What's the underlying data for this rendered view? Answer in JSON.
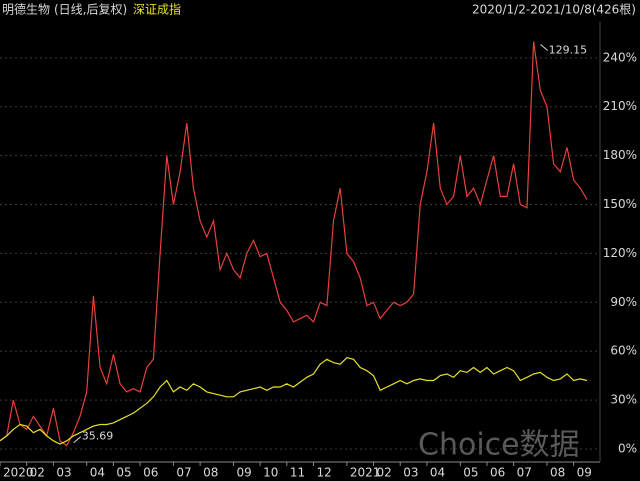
{
  "chart_data": {
    "type": "line",
    "title": "明德生物",
    "subtitle": "(日线,后复权)",
    "date_range": "2020/1/2-2021/10/8(426根)",
    "watermark": "Choice数据",
    "max_label": "129.15",
    "min_label": "35.69",
    "grid": true,
    "categories": [
      "2020",
      null,
      null,
      null,
      "02",
      null,
      null,
      null,
      "03",
      null,
      null,
      null,
      null,
      "04",
      null,
      null,
      null,
      "05",
      null,
      null,
      null,
      "06",
      null,
      null,
      null,
      null,
      "07",
      null,
      null,
      null,
      "08",
      null,
      null,
      null,
      null,
      "09",
      null,
      null,
      null,
      "10",
      null,
      null,
      null,
      "11",
      null,
      null,
      null,
      "12",
      null,
      null,
      null,
      null,
      "2021",
      null,
      null,
      null,
      "02",
      null,
      null,
      null,
      "03",
      null,
      null,
      null,
      "04",
      null,
      null,
      null,
      null,
      "05",
      null,
      null,
      null,
      "06",
      null,
      null,
      null,
      "07",
      null,
      null,
      null,
      null,
      "08",
      null,
      null,
      null,
      "09",
      null,
      null
    ],
    "series": [
      {
        "name": "明德生物",
        "color": "#e8403c",
        "values": [
          5,
          8,
          30,
          15,
          12,
          20,
          14,
          8,
          25,
          5,
          2,
          10,
          20,
          35,
          94,
          50,
          40,
          58,
          40,
          35,
          37,
          35,
          50,
          55,
          120,
          180,
          150,
          170,
          200,
          160,
          140,
          130,
          140,
          110,
          120,
          110,
          105,
          120,
          128,
          118,
          120,
          105,
          90,
          85,
          78,
          80,
          82,
          78,
          90,
          88,
          140,
          160,
          120,
          115,
          105,
          88,
          90,
          80,
          85,
          90,
          88,
          90,
          95,
          150,
          170,
          200,
          160,
          150,
          155,
          180,
          155,
          160,
          150,
          165,
          180,
          155,
          155,
          175,
          150,
          148,
          250,
          220,
          210,
          175,
          170,
          185,
          165,
          160,
          153
        ]
      },
      {
        "name": "深证成指",
        "color": "#e6e02a",
        "values": [
          5,
          8,
          12,
          15,
          14,
          10,
          12,
          8,
          5,
          3,
          5,
          8,
          10,
          12,
          14,
          15,
          15,
          16,
          18,
          20,
          22,
          25,
          28,
          32,
          38,
          42,
          35,
          38,
          36,
          40,
          38,
          35,
          34,
          33,
          32,
          32,
          35,
          36,
          37,
          38,
          36,
          38,
          38,
          40,
          38,
          41,
          44,
          46,
          52,
          55,
          53,
          52,
          56,
          55,
          50,
          48,
          45,
          36,
          38,
          40,
          42,
          40,
          42,
          43,
          42,
          42,
          45,
          46,
          44,
          48,
          47,
          50,
          47,
          50,
          46,
          48,
          50,
          48,
          42,
          44,
          46,
          47,
          44,
          42,
          43,
          46,
          42,
          43,
          42
        ]
      }
    ],
    "ylim": [
      -8,
      262
    ],
    "yticks": [
      {
        "value": 0,
        "label": "0%"
      },
      {
        "value": 30,
        "label": "30%"
      },
      {
        "value": 60,
        "label": "60%"
      },
      {
        "value": 90,
        "label": "90%"
      },
      {
        "value": 120,
        "label": "120%"
      },
      {
        "value": 150,
        "label": "150%"
      },
      {
        "value": 180,
        "label": "180%"
      },
      {
        "value": 210,
        "label": "210%"
      },
      {
        "value": 240,
        "label": "240%"
      }
    ]
  }
}
